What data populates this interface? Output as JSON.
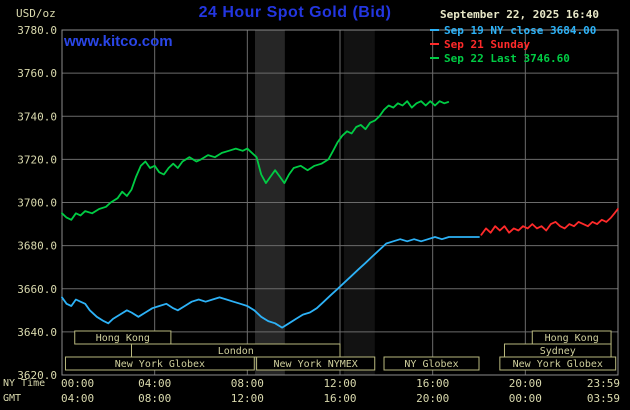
{
  "header": {
    "unit_label": "USD/oz",
    "title": "24 Hour Spot Gold (Bid)",
    "datetime": "September 22, 2025 16:40",
    "watermark": "www.kitco.com"
  },
  "colors": {
    "background": "#000000",
    "title_blue": "#2336e0",
    "watermark_blue": "#2a46e8",
    "label_tan": "#d9d9ad",
    "datetime_text": "#e8e8c8",
    "grid": "#6b6b6b",
    "plot_border": "#8c8c8c",
    "session_border": "#b9b97e",
    "session_text": "#cfcf9c"
  },
  "legend": [
    {
      "label": "Sep 19 NY close 3684.00",
      "color": "#2db2f7"
    },
    {
      "label": "Sep 21 Sunday",
      "color": "#ff2a2a"
    },
    {
      "label": "Sep 22 Last 3746.60",
      "color": "#00cc44"
    }
  ],
  "axes": {
    "y_ticks": [
      "3780.0",
      "3760.0",
      "3740.0",
      "3720.0",
      "3700.0",
      "3680.0",
      "3660.0",
      "3640.0",
      "3620.0"
    ],
    "x_rows": [
      {
        "label": "NY Time",
        "ticks": [
          "00:00",
          "04:00",
          "08:00",
          "12:00",
          "16:00",
          "20:00",
          "23:59"
        ]
      },
      {
        "label": "GMT",
        "ticks": [
          "04:00",
          "08:00",
          "12:00",
          "16:00",
          "20:00",
          "00:00",
          "03:59"
        ]
      }
    ]
  },
  "sessions": [
    {
      "row": 0,
      "from": 0.55,
      "to": 4.7,
      "label": "Hong Kong"
    },
    {
      "row": 0,
      "from": 20.3,
      "to": 23.7,
      "label": "Hong Kong"
    },
    {
      "row": 1,
      "from": 3.0,
      "to": 12.0,
      "label": "London"
    },
    {
      "row": 1,
      "from": 19.1,
      "to": 23.7,
      "label": "Sydney"
    },
    {
      "row": 2,
      "from": 0.15,
      "to": 8.3,
      "label": "New York Globex"
    },
    {
      "row": 2,
      "from": 8.4,
      "to": 13.5,
      "label": "New York NYMEX"
    },
    {
      "row": 2,
      "from": 13.9,
      "to": 18.0,
      "label": "NY Globex"
    },
    {
      "row": 2,
      "from": 18.9,
      "to": 23.9,
      "label": "New York Globex"
    }
  ],
  "chart_data": {
    "type": "line",
    "title": "24 Hour Spot Gold (Bid)",
    "x_unit": "hours NY time",
    "x_range": [
      0,
      24
    ],
    "y_unit": "USD/oz",
    "y_range": [
      3620,
      3780
    ],
    "y_gridline_step": 20,
    "x_gridline_step_hours": 4,
    "bands": [
      {
        "from": 8.33,
        "to": 9.62,
        "color": "#262626"
      },
      {
        "from": 12.17,
        "to": 13.5,
        "color": "#121212"
      }
    ],
    "series": [
      {
        "name": "Sep 19 NY close 3684.00",
        "color": "#2db2f7",
        "points": [
          [
            0.0,
            3656
          ],
          [
            0.2,
            3653
          ],
          [
            0.4,
            3652
          ],
          [
            0.6,
            3655
          ],
          [
            0.8,
            3654
          ],
          [
            1.0,
            3653
          ],
          [
            1.2,
            3650
          ],
          [
            1.5,
            3647
          ],
          [
            1.8,
            3645
          ],
          [
            2.0,
            3644
          ],
          [
            2.2,
            3646
          ],
          [
            2.5,
            3648
          ],
          [
            2.8,
            3650
          ],
          [
            3.0,
            3649
          ],
          [
            3.3,
            3647
          ],
          [
            3.6,
            3649
          ],
          [
            3.9,
            3651
          ],
          [
            4.2,
            3652
          ],
          [
            4.5,
            3653
          ],
          [
            4.8,
            3651
          ],
          [
            5.0,
            3650
          ],
          [
            5.3,
            3652
          ],
          [
            5.6,
            3654
          ],
          [
            5.9,
            3655
          ],
          [
            6.2,
            3654
          ],
          [
            6.5,
            3655
          ],
          [
            6.8,
            3656
          ],
          [
            7.1,
            3655
          ],
          [
            7.4,
            3654
          ],
          [
            7.7,
            3653
          ],
          [
            8.0,
            3652
          ],
          [
            8.3,
            3650
          ],
          [
            8.6,
            3647
          ],
          [
            8.9,
            3645
          ],
          [
            9.2,
            3644
          ],
          [
            9.5,
            3642
          ],
          [
            9.8,
            3644
          ],
          [
            10.1,
            3646
          ],
          [
            10.4,
            3648
          ],
          [
            10.7,
            3649
          ],
          [
            11.0,
            3651
          ],
          [
            11.3,
            3654
          ],
          [
            11.6,
            3657
          ],
          [
            11.9,
            3660
          ],
          [
            12.2,
            3663
          ],
          [
            12.5,
            3666
          ],
          [
            12.8,
            3669
          ],
          [
            13.1,
            3672
          ],
          [
            13.4,
            3675
          ],
          [
            13.7,
            3678
          ],
          [
            14.0,
            3681
          ],
          [
            14.3,
            3682
          ],
          [
            14.6,
            3683
          ],
          [
            14.9,
            3682
          ],
          [
            15.2,
            3683
          ],
          [
            15.5,
            3682
          ],
          [
            15.8,
            3683
          ],
          [
            16.1,
            3684
          ],
          [
            16.4,
            3683
          ],
          [
            16.7,
            3684
          ],
          [
            17.0,
            3684
          ],
          [
            17.5,
            3684
          ],
          [
            18.0,
            3684
          ]
        ]
      },
      {
        "name": "Sep 21 Sunday",
        "color": "#ff2a2a",
        "points": [
          [
            18.1,
            3685
          ],
          [
            18.3,
            3688
          ],
          [
            18.5,
            3686
          ],
          [
            18.7,
            3689
          ],
          [
            18.9,
            3687
          ],
          [
            19.1,
            3689
          ],
          [
            19.3,
            3686
          ],
          [
            19.5,
            3688
          ],
          [
            19.7,
            3687
          ],
          [
            19.9,
            3689
          ],
          [
            20.1,
            3688
          ],
          [
            20.3,
            3690
          ],
          [
            20.5,
            3688
          ],
          [
            20.7,
            3689
          ],
          [
            20.9,
            3687
          ],
          [
            21.1,
            3690
          ],
          [
            21.3,
            3691
          ],
          [
            21.5,
            3689
          ],
          [
            21.7,
            3688
          ],
          [
            21.9,
            3690
          ],
          [
            22.1,
            3689
          ],
          [
            22.3,
            3691
          ],
          [
            22.5,
            3690
          ],
          [
            22.7,
            3689
          ],
          [
            22.9,
            3691
          ],
          [
            23.1,
            3690
          ],
          [
            23.3,
            3692
          ],
          [
            23.5,
            3691
          ],
          [
            23.7,
            3693
          ],
          [
            23.85,
            3695
          ],
          [
            23.99,
            3697
          ]
        ]
      },
      {
        "name": "Sep 22 Last 3746.60",
        "color": "#00cc44",
        "points": [
          [
            0.0,
            3695
          ],
          [
            0.2,
            3693
          ],
          [
            0.4,
            3692
          ],
          [
            0.6,
            3695
          ],
          [
            0.8,
            3694
          ],
          [
            1.0,
            3696
          ],
          [
            1.3,
            3695
          ],
          [
            1.6,
            3697
          ],
          [
            1.9,
            3698
          ],
          [
            2.1,
            3700
          ],
          [
            2.4,
            3702
          ],
          [
            2.6,
            3705
          ],
          [
            2.8,
            3703
          ],
          [
            3.0,
            3706
          ],
          [
            3.2,
            3712
          ],
          [
            3.4,
            3717
          ],
          [
            3.6,
            3719
          ],
          [
            3.8,
            3716
          ],
          [
            4.0,
            3717
          ],
          [
            4.2,
            3714
          ],
          [
            4.4,
            3713
          ],
          [
            4.6,
            3716
          ],
          [
            4.8,
            3718
          ],
          [
            5.0,
            3716
          ],
          [
            5.2,
            3719
          ],
          [
            5.5,
            3721
          ],
          [
            5.8,
            3719
          ],
          [
            6.0,
            3720
          ],
          [
            6.3,
            3722
          ],
          [
            6.6,
            3721
          ],
          [
            6.9,
            3723
          ],
          [
            7.2,
            3724
          ],
          [
            7.5,
            3725
          ],
          [
            7.8,
            3724
          ],
          [
            8.0,
            3725
          ],
          [
            8.2,
            3723
          ],
          [
            8.4,
            3721
          ],
          [
            8.6,
            3713
          ],
          [
            8.8,
            3709
          ],
          [
            9.0,
            3712
          ],
          [
            9.2,
            3715
          ],
          [
            9.4,
            3712
          ],
          [
            9.6,
            3709
          ],
          [
            9.8,
            3713
          ],
          [
            10.0,
            3716
          ],
          [
            10.3,
            3717
          ],
          [
            10.6,
            3715
          ],
          [
            10.9,
            3717
          ],
          [
            11.2,
            3718
          ],
          [
            11.5,
            3720
          ],
          [
            11.7,
            3724
          ],
          [
            11.9,
            3728
          ],
          [
            12.1,
            3731
          ],
          [
            12.3,
            3733
          ],
          [
            12.5,
            3732
          ],
          [
            12.7,
            3735
          ],
          [
            12.9,
            3736
          ],
          [
            13.1,
            3734
          ],
          [
            13.3,
            3737
          ],
          [
            13.5,
            3738
          ],
          [
            13.7,
            3740
          ],
          [
            13.9,
            3743
          ],
          [
            14.1,
            3745
          ],
          [
            14.3,
            3744
          ],
          [
            14.5,
            3746
          ],
          [
            14.7,
            3745
          ],
          [
            14.9,
            3747
          ],
          [
            15.1,
            3744
          ],
          [
            15.3,
            3746
          ],
          [
            15.5,
            3747
          ],
          [
            15.7,
            3745
          ],
          [
            15.9,
            3747
          ],
          [
            16.1,
            3745
          ],
          [
            16.3,
            3747
          ],
          [
            16.5,
            3746
          ],
          [
            16.67,
            3746.6
          ]
        ]
      }
    ]
  }
}
